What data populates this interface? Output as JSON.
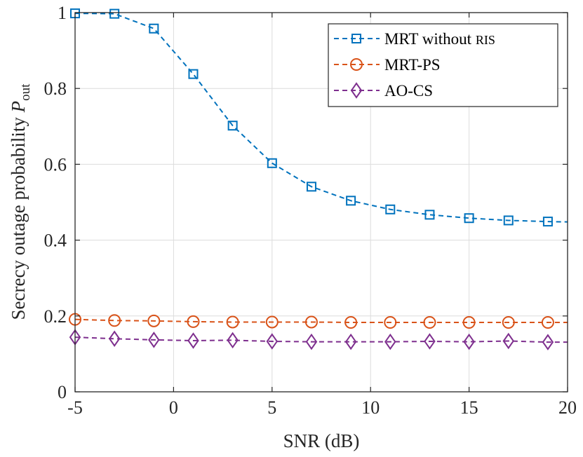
{
  "chart_data": {
    "type": "line",
    "title": "",
    "xlabel": "SNR (dB)",
    "ylabel_main": "Secrecy outage probability ",
    "ylabel_symbol": "P",
    "ylabel_subscript": "out",
    "xlim": [
      -5,
      20
    ],
    "ylim": [
      0,
      1
    ],
    "xticks": [
      -5,
      0,
      5,
      10,
      15,
      20
    ],
    "yticks": [
      0,
      0.2,
      0.4,
      0.6,
      0.8,
      1
    ],
    "xtick_labels": [
      "-5",
      "0",
      "5",
      "10",
      "15",
      "20"
    ],
    "ytick_labels": [
      "0",
      "0.2",
      "0.4",
      "0.6",
      "0.8",
      "1"
    ],
    "grid": true,
    "legend_position": "top-right",
    "series": [
      {
        "name": "MRT without RIS",
        "legend_main": "MRT without ",
        "legend_smallcaps": "RIS",
        "color": "#0072BD",
        "marker": "square",
        "x": [
          -5,
          -3,
          -1,
          1,
          3,
          5,
          7,
          9,
          11,
          13,
          15,
          17,
          19,
          20
        ],
        "markers_x": [
          -5,
          -3,
          -1,
          1,
          3,
          5,
          7,
          9,
          11,
          13,
          15,
          17,
          19
        ],
        "y": [
          0.998,
          0.997,
          0.958,
          0.838,
          0.702,
          0.603,
          0.541,
          0.504,
          0.481,
          0.467,
          0.458,
          0.452,
          0.449,
          0.448
        ]
      },
      {
        "name": "MRT-PS",
        "legend_main": "MRT-PS",
        "legend_smallcaps": "",
        "color": "#D95319",
        "marker": "circle",
        "x": [
          -5,
          -3,
          -1,
          1,
          3,
          5,
          7,
          9,
          11,
          13,
          15,
          17,
          19,
          20
        ],
        "markers_x": [
          -5,
          -3,
          -1,
          1,
          3,
          5,
          7,
          9,
          11,
          13,
          15,
          17,
          19
        ],
        "y": [
          0.191,
          0.188,
          0.187,
          0.185,
          0.184,
          0.184,
          0.184,
          0.183,
          0.183,
          0.183,
          0.183,
          0.183,
          0.183,
          0.183
        ]
      },
      {
        "name": "AO-CS",
        "legend_main": "AO-CS",
        "legend_smallcaps": "",
        "color": "#7E2F8E",
        "marker": "diamond",
        "x": [
          -5,
          -3,
          -1,
          1,
          3,
          5,
          7,
          9,
          11,
          13,
          15,
          17,
          19,
          20
        ],
        "markers_x": [
          -5,
          -3,
          -1,
          1,
          3,
          5,
          7,
          9,
          11,
          13,
          15,
          17,
          19
        ],
        "y": [
          0.144,
          0.14,
          0.137,
          0.135,
          0.136,
          0.133,
          0.132,
          0.132,
          0.132,
          0.133,
          0.132,
          0.134,
          0.131,
          0.131
        ]
      }
    ]
  }
}
